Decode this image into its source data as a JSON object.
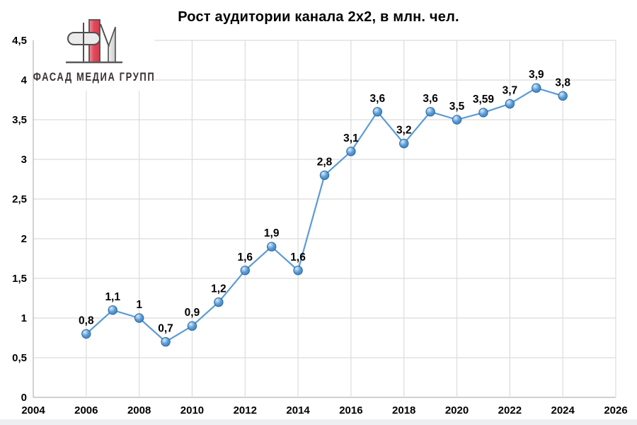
{
  "page": {
    "background": "#ffffff",
    "footer_strip_color": "#edf0f2"
  },
  "header": {
    "title": "Рост аудитории канала 2x2, в млн. чел."
  },
  "logo": {
    "text": "ФАСАД МЕДИА ГРУПП",
    "bar_color": "#df4a5a",
    "bar_color_light": "#f2919c",
    "outline_color": "#4f4f4f",
    "fill_light": "#ebebeb",
    "text_color": "#3b3232"
  },
  "chart_data": {
    "type": "line",
    "title": "Рост аудитории канала 2x2, в млн. чел.",
    "x": [
      2006,
      2007,
      2008,
      2009,
      2010,
      2011,
      2012,
      2013,
      2014,
      2015,
      2016,
      2017,
      2018,
      2019,
      2020,
      2021,
      2022,
      2023,
      2024
    ],
    "values": [
      0.8,
      1.1,
      1.0,
      0.7,
      0.9,
      1.2,
      1.6,
      1.9,
      1.6,
      2.8,
      3.1,
      3.6,
      3.2,
      3.6,
      3.5,
      3.59,
      3.7,
      3.9,
      3.8
    ],
    "point_labels": [
      "0,8",
      "1,1",
      "1",
      "0,7",
      "0,9",
      "1,2",
      "1,6",
      "1,9",
      "1,6",
      "2,8",
      "3,1",
      "3,6",
      "3,2",
      "3,6",
      "3,5",
      "3,59",
      "3,7",
      "3,9",
      "3,8"
    ],
    "x_axis": {
      "min": 2004,
      "max": 2026,
      "tick_step": 2,
      "tick_labels": [
        "2004",
        "2006",
        "2008",
        "2010",
        "2012",
        "2014",
        "2016",
        "2018",
        "2020",
        "2022",
        "2024",
        "2026"
      ]
    },
    "y_axis": {
      "min": 0,
      "max": 4.5,
      "tick_step": 0.5,
      "tick_labels": [
        "0",
        "0,5",
        "1",
        "1,5",
        "2",
        "2,5",
        "3",
        "3,5",
        "4",
        "4,5"
      ]
    },
    "grid": true,
    "legend": "none",
    "line_color": "#5b9bd5",
    "marker_stroke": "#2a6a9f",
    "marker_gradient": [
      "#d9ecfb",
      "#5b9bd5",
      "#2e75b6"
    ],
    "gridline_color": "#dcdcdc",
    "axis_color": "#b5b5b5",
    "label_color": "#000000",
    "ylabel": "млн. чел."
  }
}
